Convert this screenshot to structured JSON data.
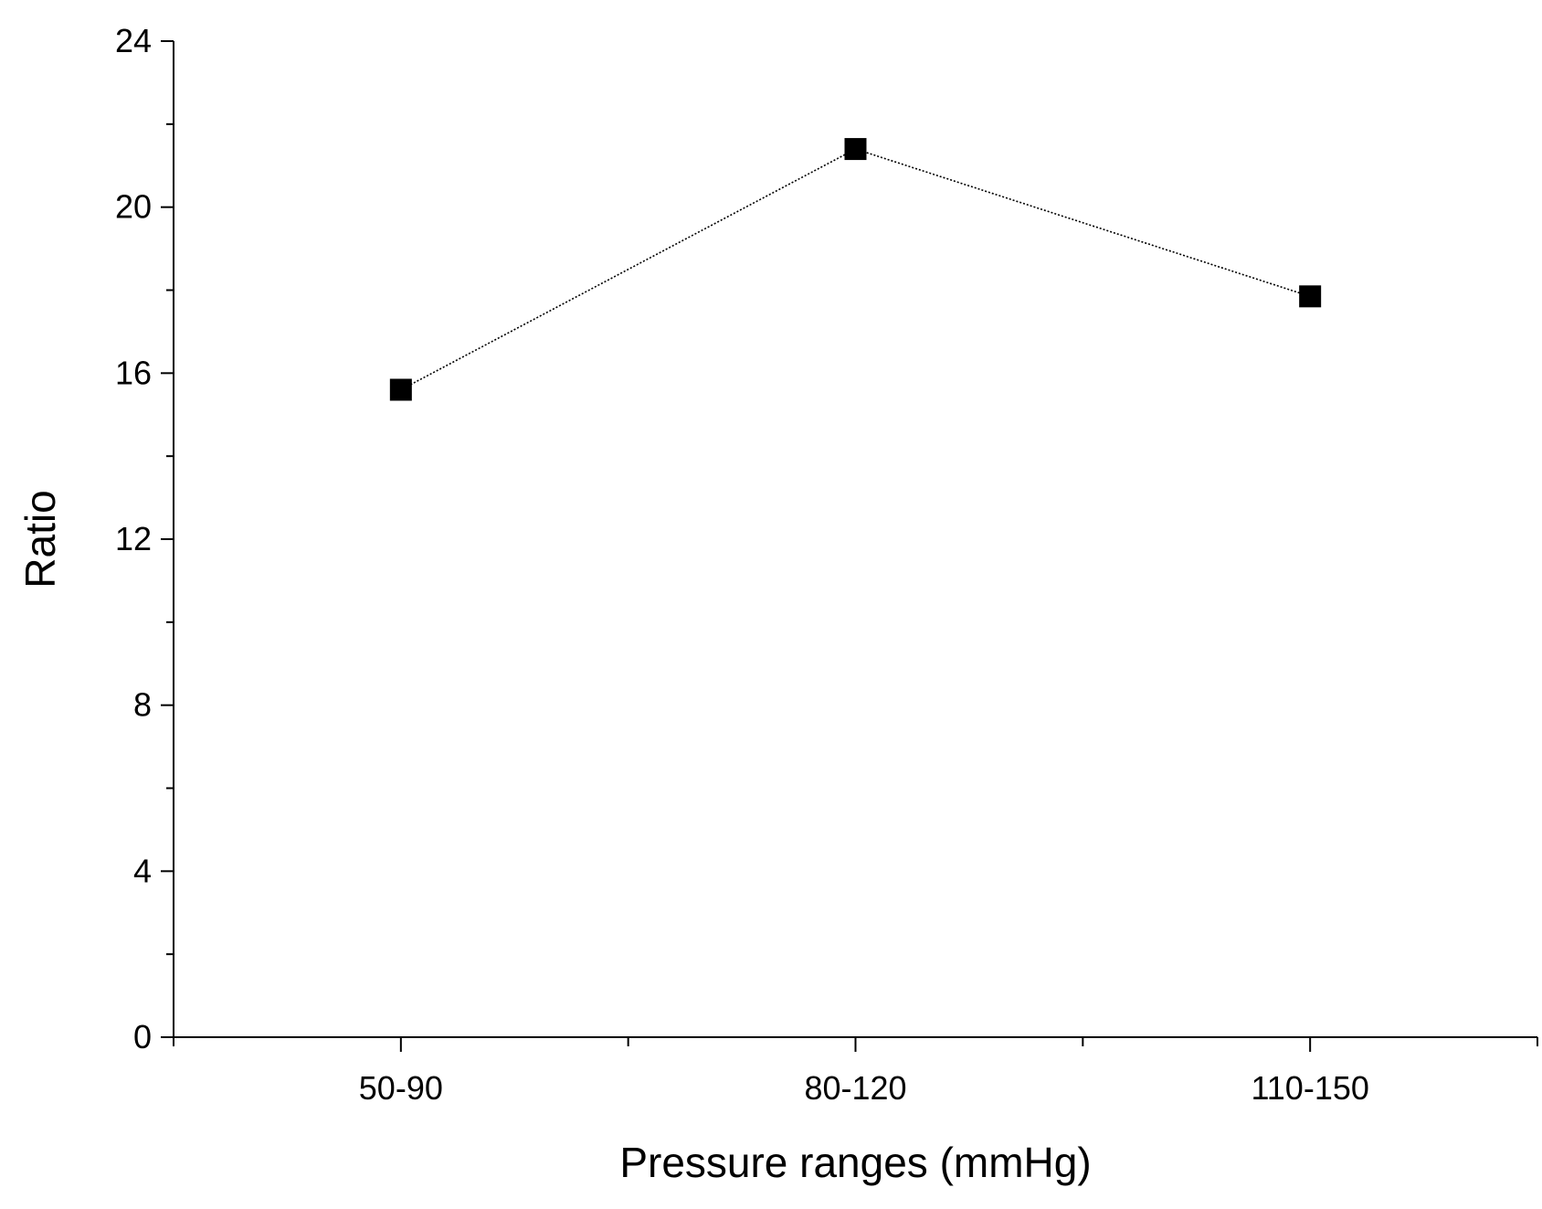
{
  "chart_data": {
    "type": "line",
    "title": "",
    "xlabel": "Pressure ranges (mmHg)",
    "ylabel": "Ratio",
    "categories": [
      "50-90",
      "80-120",
      "110-150"
    ],
    "series": [
      {
        "name": "Ratio",
        "values": [
          15.6,
          21.4,
          17.85
        ],
        "marker": "square",
        "line_style": "dotted",
        "color": "#000000"
      }
    ],
    "ylim": [
      0,
      24
    ],
    "yticks": [
      "0",
      "4",
      "8",
      "12",
      "16",
      "20",
      "24"
    ],
    "yticks_minor_step": 2,
    "grid": false,
    "legend": "none"
  }
}
